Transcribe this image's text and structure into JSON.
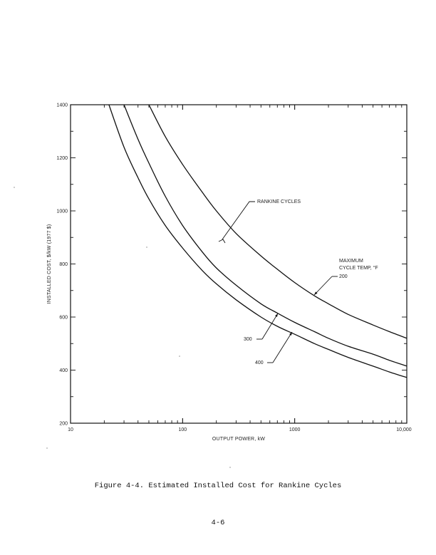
{
  "caption": "Figure 4-4.  Estimated Installed Cost for Rankine Cycles",
  "page_number": "4-6",
  "chart_data": {
    "type": "line",
    "title": "",
    "xlabel": "OUTPUT POWER, kW",
    "ylabel": "INSTALLED COST, $/kW (1977 $)",
    "xscale": "log",
    "xlim": [
      10,
      10000
    ],
    "ylim": [
      200,
      1400
    ],
    "x_tick_labels": [
      "10",
      "100",
      "1000",
      "10,000"
    ],
    "y_tick_labels": [
      "200",
      "400",
      "600",
      "800",
      "1000",
      "1200",
      "1400"
    ],
    "grid": false,
    "series": [
      {
        "name": "200",
        "x": [
          50,
          70,
          100,
          150,
          200,
          300,
          500,
          700,
          1000,
          1500,
          2000,
          3000,
          5000,
          7000,
          10000
        ],
        "y": [
          1400,
          1280,
          1175,
          1070,
          1000,
          915,
          830,
          780,
          730,
          680,
          650,
          610,
          570,
          545,
          520
        ]
      },
      {
        "name": "300",
        "x": [
          30,
          40,
          50,
          70,
          100,
          150,
          200,
          300,
          500,
          700,
          1000,
          1500,
          2000,
          3000,
          5000,
          7000,
          10000
        ],
        "y": [
          1400,
          1270,
          1180,
          1055,
          945,
          845,
          785,
          720,
          650,
          615,
          580,
          545,
          520,
          490,
          460,
          437,
          415
        ]
      },
      {
        "name": "400",
        "x": [
          22,
          30,
          40,
          50,
          70,
          100,
          150,
          200,
          300,
          500,
          700,
          1000,
          1500,
          2000,
          3000,
          5000,
          7000,
          10000
        ],
        "y": [
          1400,
          1240,
          1125,
          1045,
          945,
          860,
          775,
          725,
          665,
          600,
          565,
          535,
          500,
          478,
          448,
          415,
          393,
          372
        ]
      }
    ],
    "annotations": {
      "family_label": "RANKINE CYCLES",
      "temp_label_line1": "MAXIMUM",
      "temp_label_line2": "CYCLE TEMP, °F",
      "label_200": "200",
      "label_300": "300",
      "label_400": "400"
    }
  }
}
